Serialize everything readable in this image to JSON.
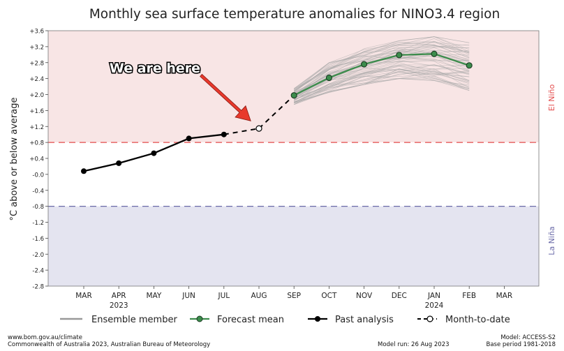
{
  "chart_data": {
    "type": "line",
    "title": "Monthly sea surface temperature anomalies for NINO3.4 region",
    "ylabel": "°C above or below average",
    "ylim": [
      -2.8,
      3.6
    ],
    "yticks": [
      "+3.6",
      "+3.2",
      "+2.8",
      "+2.4",
      "+2.0",
      "+1.6",
      "+1.2",
      "+0.8",
      "+0.4",
      "-0.0",
      "-0.4",
      "-0.8",
      "-1.2",
      "-1.6",
      "-2.0",
      "-2.4",
      "-2.8"
    ],
    "categories": [
      "MAR",
      "APR",
      "MAY",
      "JUN",
      "JUL",
      "AUG",
      "SEP",
      "OCT",
      "NOV",
      "DEC",
      "JAN",
      "FEB",
      "MAR"
    ],
    "year_labels": [
      {
        "index": 1,
        "label": "2023"
      },
      {
        "index": 10,
        "label": "2024"
      }
    ],
    "thresholds": {
      "el_nino": 0.8,
      "la_nina": -0.8,
      "el_nino_label": "El Niño",
      "la_nina_label": "La Niña",
      "el_nino_color": "#e34b4b",
      "la_nina_color": "#6a6aa8",
      "el_nino_bg": "#f8e5e5",
      "la_nina_bg": "#e4e4f0"
    },
    "series": [
      {
        "name": "Past analysis",
        "color": "#000000",
        "x": [
          0,
          1,
          2,
          3,
          4
        ],
        "values": [
          0.08,
          0.28,
          0.53,
          0.9,
          1.0
        ]
      },
      {
        "name": "Month-to-date",
        "color": "#000000",
        "x": [
          5
        ],
        "values": [
          1.15
        ]
      },
      {
        "name": "Forecast mean",
        "color": "#3c8c4c",
        "x": [
          6,
          7,
          8,
          9,
          10,
          11
        ],
        "values": [
          1.98,
          2.42,
          2.76,
          2.99,
          3.02,
          2.73
        ]
      }
    ],
    "ensemble_spread": {
      "x": [
        6,
        7,
        8,
        9,
        10,
        11
      ],
      "low": [
        1.75,
        2.05,
        2.25,
        2.4,
        2.35,
        2.1
      ],
      "high": [
        2.15,
        2.8,
        3.15,
        3.35,
        3.45,
        3.3
      ],
      "color": "#a8a8a8"
    },
    "annotation": {
      "text": "We are here",
      "target_index": 5,
      "arrow_color": "#e8392c"
    },
    "legend": {
      "placement": "bottom",
      "items": [
        {
          "label": "Ensemble member",
          "marker": "line-gray"
        },
        {
          "label": "Forecast mean",
          "marker": "line-green-dot"
        },
        {
          "label": "Past analysis",
          "marker": "line-black-dot"
        },
        {
          "label": "Month-to-date",
          "marker": "dashed-open-dot"
        }
      ]
    }
  },
  "footer": {
    "website": "www.bom.gov.au/climate",
    "copyright": "Commonwealth of Australia 2023, Australian Bureau of Meteorology",
    "model_run": "Model run: 26 Aug 2023",
    "model": "Model: ACCESS-S2",
    "base_period": "Base period 1981-2018"
  }
}
